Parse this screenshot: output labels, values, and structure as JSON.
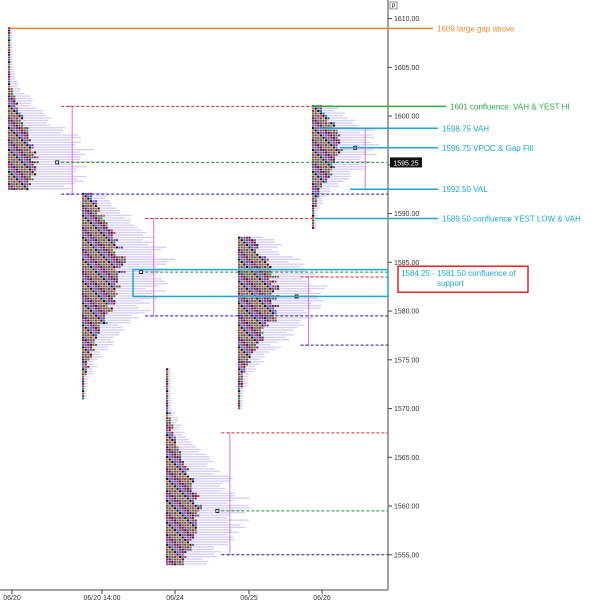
{
  "chart_data": {
    "type": "market-profile",
    "y_range": [
      1552,
      1611.5
    ],
    "y_ticks": [
      1555,
      1560,
      1565,
      1570,
      1575,
      1580,
      1585,
      1590,
      1595,
      1600,
      1605,
      1610
    ],
    "y_tick_labels": [
      "1555.00",
      "1560.00",
      "1565.00",
      "1570.00",
      "1575.00",
      "1580.00",
      "1585.00",
      "1590.00",
      "1595.00",
      "1600.00",
      "1605.00",
      "1610.00"
    ],
    "x_labels": [
      "06/20",
      "06/20 14:00",
      "06/24",
      "06/25",
      "06/26"
    ],
    "price_flag": "1595.25",
    "corner_badge": "P",
    "profiles": [
      {
        "session": "06/20",
        "high": 1609.0,
        "low": 1592.5,
        "poc": 1595.25,
        "vah": 1601.0,
        "val": 1592.0
      },
      {
        "session": "06/20 14:00",
        "high": 1592.0,
        "low": 1571.0,
        "poc": 1584.0,
        "vah": 1589.5,
        "val": 1579.5
      },
      {
        "session": "06/24",
        "high": 1574.0,
        "low": 1554.0,
        "poc": 1559.5,
        "vah": 1567.5,
        "val": 1555.0
      },
      {
        "session": "06/25",
        "high": 1587.5,
        "low": 1570.0,
        "poc": 1581.5,
        "vah": 1583.5,
        "val": 1576.5
      },
      {
        "session": "06/26",
        "high": 1601.0,
        "low": 1588.5,
        "poc": 1596.75,
        "vah": 1598.75,
        "val": 1592.5
      }
    ],
    "reference_lines": [
      {
        "label": "1609 large gap above",
        "price": 1609,
        "color": "#f0883a"
      },
      {
        "label": "1601 confluence: VAH & YEST HI",
        "price": 1601,
        "color": "#2eaa4a"
      },
      {
        "label": "1598.75 VAH",
        "price": 1598.75,
        "color": "#1ea7c9"
      },
      {
        "label": "1596.75 VPOC & Gap Fill",
        "price": 1596.75,
        "color": "#1ea7c9"
      },
      {
        "label": "1592.50 VAL",
        "price": 1592.5,
        "color": "#1ea7c9"
      },
      {
        "label": "1589.50 confluence YEST LOW & VAH",
        "price": 1589.5,
        "color": "#1ea7c9"
      }
    ],
    "support_zone": {
      "high": 1584.25,
      "low": 1581.5,
      "color": "#1ea7c9"
    },
    "support_label": "1584.25 - 1581.50 confluence of support",
    "support_label_color": "#d9272e"
  }
}
